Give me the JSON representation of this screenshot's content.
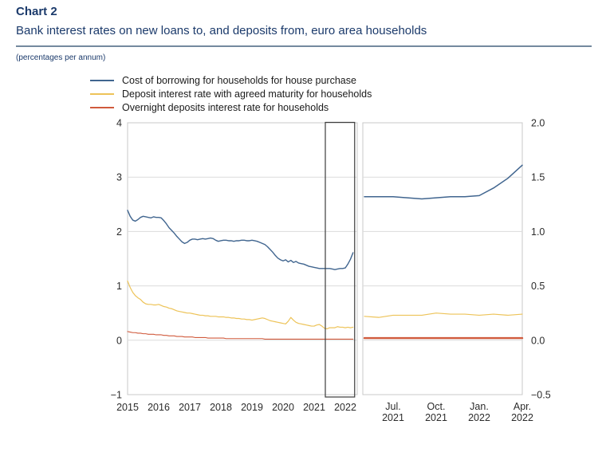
{
  "header": {
    "chart_label": "Chart 2",
    "title": "Bank interest rates on new loans to, and deposits from, euro area households",
    "unit_note": "(percentages per annum)"
  },
  "colors": {
    "accent_navy": "#1B3A6B",
    "title_rule": "#74899E",
    "series_house": "#40658F",
    "series_deposit": "#EDC358",
    "series_overnight": "#D05A3C",
    "grid": "#DCDCDC",
    "panel_border": "#C8C8C8",
    "highlight_box": "#3D3D3D",
    "axis_text": "#2B2B2B"
  },
  "legend": [
    {
      "label": "Cost of borrowing for households for house purchase",
      "color_key": "series_house"
    },
    {
      "label": "Deposit interest rate with agreed maturity for households",
      "color_key": "series_deposit"
    },
    {
      "label": "Overnight deposits interest rate for households",
      "color_key": "series_overnight"
    }
  ],
  "chart_data": {
    "type": "line",
    "unit": "percentages per annum",
    "grid": "horizontal-only",
    "legend_position": "top-left",
    "panels": [
      {
        "id": "full-period",
        "x_monthly_range": [
          "2015-01",
          "2022-04"
        ],
        "ylim": [
          -1,
          4
        ],
        "y_axis_side": "left",
        "y_ticks": [
          {
            "label": "4",
            "value": 4
          },
          {
            "label": "3",
            "value": 3
          },
          {
            "label": "2",
            "value": 2
          },
          {
            "label": "1",
            "value": 1
          },
          {
            "label": "0",
            "value": 0
          },
          {
            "label": "−1",
            "value": -1
          }
        ],
        "x_ticks": [
          {
            "label": "2015",
            "month_index": 0
          },
          {
            "label": "2016",
            "month_index": 12
          },
          {
            "label": "2017",
            "month_index": 24
          },
          {
            "label": "2018",
            "month_index": 36
          },
          {
            "label": "2019",
            "month_index": 48
          },
          {
            "label": "2020",
            "month_index": 60
          },
          {
            "label": "2021",
            "month_index": 72
          },
          {
            "label": "2022",
            "month_index": 84
          }
        ],
        "highlight": {
          "start_month": "2021-05",
          "end_month": "2022-04",
          "start_index": 76,
          "end_index": 87
        },
        "series": [
          {
            "id": "house-purchase",
            "name": "Cost of borrowing for households for house purchase",
            "color_key": "series_house",
            "values": [
              2.39,
              2.28,
              2.21,
              2.19,
              2.22,
              2.26,
              2.28,
              2.27,
              2.26,
              2.25,
              2.27,
              2.26,
              2.26,
              2.25,
              2.2,
              2.14,
              2.07,
              2.02,
              1.97,
              1.91,
              1.86,
              1.81,
              1.78,
              1.8,
              1.84,
              1.86,
              1.86,
              1.85,
              1.86,
              1.87,
              1.86,
              1.87,
              1.88,
              1.87,
              1.84,
              1.82,
              1.83,
              1.84,
              1.84,
              1.83,
              1.83,
              1.82,
              1.83,
              1.83,
              1.84,
              1.84,
              1.83,
              1.83,
              1.84,
              1.83,
              1.82,
              1.8,
              1.78,
              1.76,
              1.72,
              1.67,
              1.62,
              1.56,
              1.51,
              1.48,
              1.46,
              1.48,
              1.44,
              1.47,
              1.43,
              1.45,
              1.42,
              1.41,
              1.4,
              1.38,
              1.36,
              1.35,
              1.34,
              1.33,
              1.32,
              1.32,
              1.32,
              1.32,
              1.32,
              1.31,
              1.3,
              1.31,
              1.32,
              1.32,
              1.33,
              1.4,
              1.49,
              1.61
            ]
          },
          {
            "id": "deposit-agreed-maturity",
            "name": "Deposit interest rate with agreed maturity for households",
            "color_key": "series_deposit",
            "values": [
              1.09,
              0.97,
              0.88,
              0.82,
              0.78,
              0.75,
              0.7,
              0.67,
              0.66,
              0.66,
              0.65,
              0.65,
              0.66,
              0.64,
              0.62,
              0.61,
              0.59,
              0.58,
              0.56,
              0.54,
              0.53,
              0.52,
              0.51,
              0.5,
              0.5,
              0.49,
              0.48,
              0.47,
              0.46,
              0.46,
              0.45,
              0.45,
              0.44,
              0.44,
              0.44,
              0.43,
              0.43,
              0.43,
              0.42,
              0.42,
              0.41,
              0.41,
              0.4,
              0.4,
              0.39,
              0.39,
              0.38,
              0.38,
              0.37,
              0.38,
              0.39,
              0.4,
              0.41,
              0.4,
              0.38,
              0.36,
              0.35,
              0.34,
              0.33,
              0.32,
              0.31,
              0.3,
              0.35,
              0.42,
              0.37,
              0.33,
              0.31,
              0.3,
              0.29,
              0.28,
              0.27,
              0.26,
              0.26,
              0.28,
              0.29,
              0.26,
              0.22,
              0.21,
              0.23,
              0.23,
              0.23,
              0.25,
              0.24,
              0.24,
              0.23,
              0.24,
              0.23,
              0.24
            ]
          },
          {
            "id": "overnight-deposits",
            "name": "Overnight deposits interest rate for households",
            "color_key": "series_overnight",
            "values": [
              0.16,
              0.15,
              0.14,
              0.14,
              0.13,
              0.13,
              0.12,
              0.12,
              0.11,
              0.11,
              0.11,
              0.1,
              0.1,
              0.1,
              0.09,
              0.09,
              0.08,
              0.08,
              0.08,
              0.07,
              0.07,
              0.07,
              0.06,
              0.06,
              0.06,
              0.06,
              0.05,
              0.05,
              0.05,
              0.05,
              0.05,
              0.04,
              0.04,
              0.04,
              0.04,
              0.04,
              0.04,
              0.04,
              0.03,
              0.03,
              0.03,
              0.03,
              0.03,
              0.03,
              0.03,
              0.03,
              0.03,
              0.03,
              0.03,
              0.03,
              0.03,
              0.03,
              0.03,
              0.02,
              0.02,
              0.02,
              0.02,
              0.02,
              0.02,
              0.02,
              0.02,
              0.02,
              0.02,
              0.02,
              0.02,
              0.02,
              0.02,
              0.02,
              0.02,
              0.02,
              0.02,
              0.02,
              0.02,
              0.02,
              0.02,
              0.02,
              0.02,
              0.02,
              0.02,
              0.02,
              0.02,
              0.02,
              0.02,
              0.02,
              0.02,
              0.02,
              0.02,
              0.02
            ]
          }
        ]
      },
      {
        "id": "recent-zoom",
        "x_monthly_range": [
          "2021-05",
          "2022-04"
        ],
        "ylim": [
          -0.5,
          2.0
        ],
        "y_axis_side": "right",
        "y_ticks": [
          {
            "label": "2.0",
            "value": 2.0
          },
          {
            "label": "1.5",
            "value": 1.5
          },
          {
            "label": "1.0",
            "value": 1.0
          },
          {
            "label": "0.5",
            "value": 0.5
          },
          {
            "label": "0.0",
            "value": 0.0
          },
          {
            "label": "−0.5",
            "value": -0.5
          }
        ],
        "x_ticks": [
          {
            "label": "Jul.",
            "sublabel": "2021",
            "month_index": 2
          },
          {
            "label": "Oct.",
            "sublabel": "2021",
            "month_index": 5
          },
          {
            "label": "Jan.",
            "sublabel": "2022",
            "month_index": 8
          },
          {
            "label": "Apr.",
            "sublabel": "2022",
            "month_index": 11
          }
        ],
        "series": [
          {
            "id": "house-purchase",
            "name": "Cost of borrowing for households for house purchase",
            "color_key": "series_house",
            "values": [
              1.32,
              1.32,
              1.32,
              1.31,
              1.3,
              1.31,
              1.32,
              1.32,
              1.33,
              1.4,
              1.49,
              1.61
            ]
          },
          {
            "id": "deposit-agreed-maturity",
            "name": "Deposit interest rate with agreed maturity for households",
            "color_key": "series_deposit",
            "values": [
              0.22,
              0.21,
              0.23,
              0.23,
              0.23,
              0.25,
              0.24,
              0.24,
              0.23,
              0.24,
              0.23,
              0.24
            ]
          },
          {
            "id": "overnight-deposits",
            "name": "Overnight deposits interest rate for households",
            "color_key": "series_overnight",
            "values": [
              0.02,
              0.02,
              0.02,
              0.02,
              0.02,
              0.02,
              0.02,
              0.02,
              0.02,
              0.02,
              0.02,
              0.02
            ]
          }
        ]
      }
    ]
  }
}
